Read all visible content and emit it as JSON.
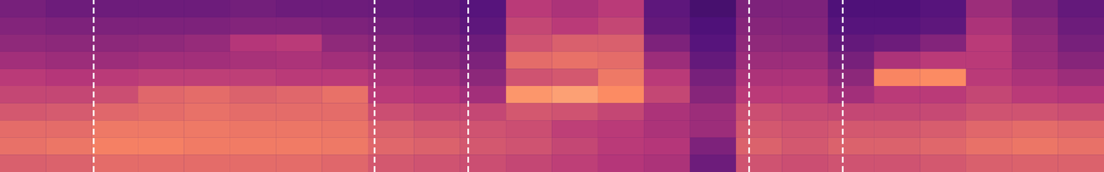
{
  "chart_data": {
    "type": "heatmap",
    "xlim": [
      0,
      11.79
    ],
    "ylim": [
      0,
      10
    ],
    "tick_labels": false,
    "vertical_lines": [
      1,
      4,
      5,
      8,
      9
    ],
    "cells": [
      [
        0.28,
        0.25,
        0.25,
        0.25,
        0.25,
        0.27,
        0.25,
        0.25,
        0.24,
        0.22,
        0.18,
        0.5,
        0.45,
        0.5,
        0.2,
        0.12,
        0.3,
        0.3,
        0.15,
        0.15,
        0.18,
        0.4,
        0.3,
        0.22
      ],
      [
        0.32,
        0.3,
        0.3,
        0.3,
        0.3,
        0.32,
        0.32,
        0.3,
        0.28,
        0.26,
        0.2,
        0.55,
        0.5,
        0.55,
        0.22,
        0.15,
        0.33,
        0.32,
        0.18,
        0.18,
        0.2,
        0.45,
        0.35,
        0.25
      ],
      [
        0.36,
        0.35,
        0.35,
        0.36,
        0.38,
        0.48,
        0.5,
        0.36,
        0.33,
        0.3,
        0.25,
        0.6,
        0.65,
        0.65,
        0.3,
        0.18,
        0.36,
        0.35,
        0.22,
        0.25,
        0.32,
        0.5,
        0.38,
        0.28
      ],
      [
        0.42,
        0.4,
        0.4,
        0.42,
        0.42,
        0.44,
        0.45,
        0.42,
        0.38,
        0.35,
        0.3,
        0.7,
        0.72,
        0.7,
        0.4,
        0.22,
        0.4,
        0.4,
        0.28,
        0.45,
        0.5,
        0.5,
        0.4,
        0.33
      ],
      [
        0.5,
        0.48,
        0.5,
        0.52,
        0.52,
        0.52,
        0.5,
        0.5,
        0.45,
        0.42,
        0.35,
        0.6,
        0.62,
        0.75,
        0.5,
        0.28,
        0.45,
        0.45,
        0.35,
        0.8,
        0.82,
        0.5,
        0.45,
        0.4
      ],
      [
        0.55,
        0.55,
        0.58,
        0.68,
        0.7,
        0.66,
        0.68,
        0.72,
        0.5,
        0.48,
        0.42,
        0.85,
        0.88,
        0.82,
        0.55,
        0.33,
        0.5,
        0.5,
        0.42,
        0.5,
        0.5,
        0.55,
        0.5,
        0.48
      ],
      [
        0.62,
        0.63,
        0.68,
        0.7,
        0.72,
        0.7,
        0.7,
        0.7,
        0.58,
        0.55,
        0.55,
        0.62,
        0.6,
        0.55,
        0.45,
        0.4,
        0.58,
        0.56,
        0.55,
        0.55,
        0.56,
        0.6,
        0.6,
        0.58
      ],
      [
        0.7,
        0.7,
        0.75,
        0.75,
        0.75,
        0.74,
        0.74,
        0.73,
        0.65,
        0.62,
        0.6,
        0.58,
        0.52,
        0.5,
        0.45,
        0.4,
        0.62,
        0.6,
        0.62,
        0.62,
        0.64,
        0.68,
        0.7,
        0.68
      ],
      [
        0.72,
        0.74,
        0.78,
        0.78,
        0.76,
        0.76,
        0.76,
        0.75,
        0.68,
        0.66,
        0.62,
        0.6,
        0.55,
        0.5,
        0.48,
        0.3,
        0.66,
        0.62,
        0.66,
        0.66,
        0.68,
        0.72,
        0.74,
        0.72
      ],
      [
        0.65,
        0.66,
        0.7,
        0.7,
        0.7,
        0.7,
        0.7,
        0.68,
        0.62,
        0.6,
        0.58,
        0.55,
        0.52,
        0.48,
        0.45,
        0.25,
        0.6,
        0.58,
        0.6,
        0.6,
        0.62,
        0.65,
        0.66,
        0.66
      ]
    ]
  }
}
